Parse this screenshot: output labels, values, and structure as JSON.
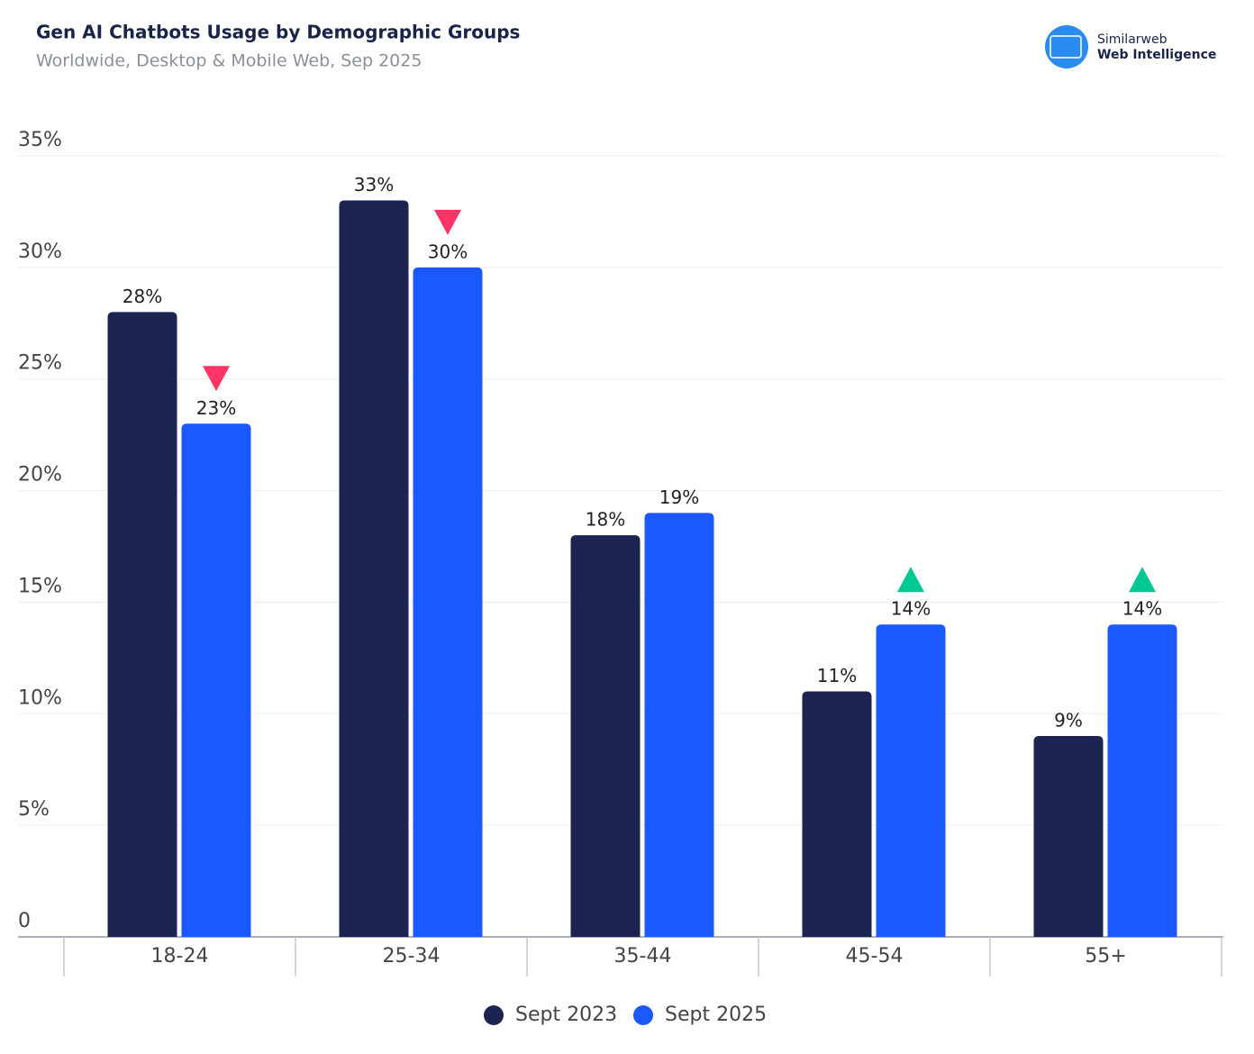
{
  "chart_data": {
    "type": "bar",
    "title": "Gen AI Chatbots Usage by Demographic Groups",
    "subtitle": "Worldwide, Desktop & Mobile Web, Sep 2025",
    "categories": [
      "18-24",
      "25-34",
      "35-44",
      "45-54",
      "55+"
    ],
    "series": [
      {
        "name": "Sept 2023",
        "color": "#1c2551",
        "values": [
          28,
          33,
          18,
          11,
          9
        ],
        "value_labels": [
          "28%",
          "33%",
          "18%",
          "11%",
          "9%"
        ]
      },
      {
        "name": "Sept 2025",
        "color": "#1b59fe",
        "values": [
          23,
          30,
          19,
          14,
          14
        ],
        "value_labels": [
          "23%",
          "30%",
          "19%",
          "14%",
          "14%"
        ]
      }
    ],
    "change_indicators": [
      "down",
      "down",
      null,
      "up",
      "up"
    ],
    "indicator_colors": {
      "down": "#ff3366",
      "up": "#00c893"
    },
    "ylim": [
      0,
      35
    ],
    "yticks": [
      0,
      {
        "value": 5,
        "label": "5%"
      },
      {
        "value": 10,
        "label": "10%"
      },
      {
        "value": 15,
        "label": "15%"
      },
      {
        "value": 20,
        "label": "20%"
      },
      {
        "value": 25,
        "label": "25%"
      },
      {
        "value": 30,
        "label": "30%"
      },
      {
        "value": 35,
        "label": "35%"
      }
    ],
    "grid": true,
    "legend": "bottom"
  },
  "branding": {
    "name": "Similarweb",
    "tagline": "Web Intelligence"
  }
}
